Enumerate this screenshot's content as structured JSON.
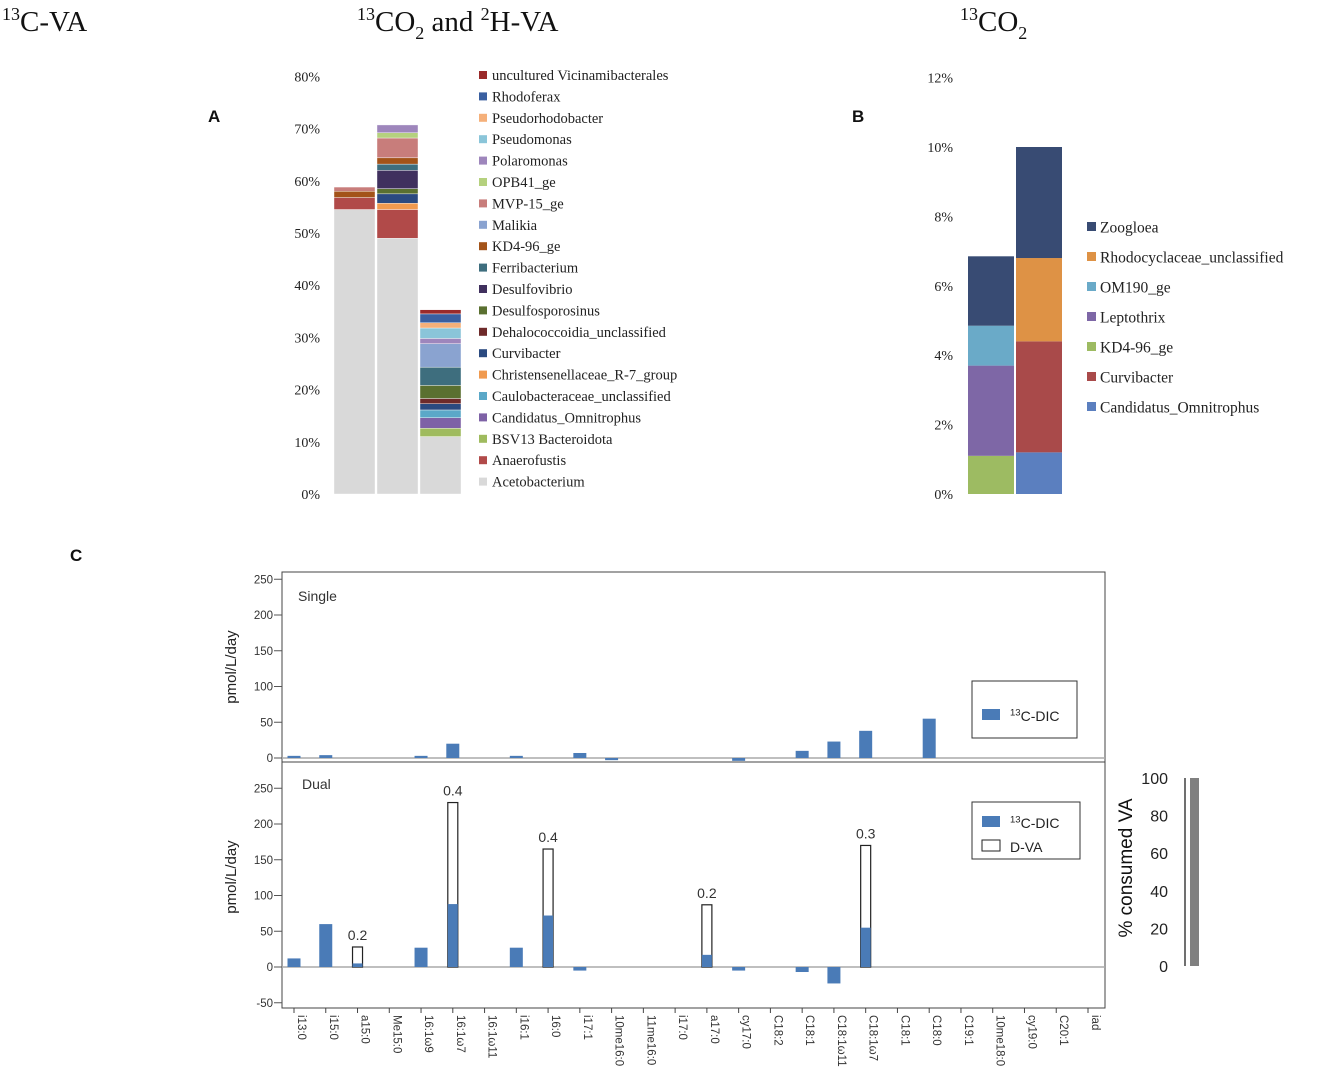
{
  "headers": {
    "left": "13C-VA",
    "middle": "13CO2 and 2H-VA",
    "right": "13CO2"
  },
  "chart_data": [
    {
      "id": "A",
      "panel_label": "A",
      "type": "bar",
      "stacked": true,
      "ylim": [
        0,
        80
      ],
      "yticks": [
        "0%",
        "10%",
        "20%",
        "30%",
        "40%",
        "50%",
        "60%",
        "70%",
        "80%"
      ],
      "categories": [
        "13C-VA",
        "13CO2 and 2H-VA",
        "13CO2"
      ],
      "legend_position": "right",
      "series": [
        {
          "name": "Acetobacterium",
          "color": "#d9d9d9",
          "values": [
            54.5,
            49,
            11
          ]
        },
        {
          "name": "Anaerofustis",
          "color": "#b14a49",
          "values": [
            2.3,
            5.5,
            0
          ]
        },
        {
          "name": "BSV13 Bacteroidota",
          "color": "#9fbb5e",
          "values": [
            0,
            0,
            1.6
          ]
        },
        {
          "name": "Candidatus_Omnitrophus",
          "color": "#7e62a6",
          "values": [
            0,
            0,
            2
          ]
        },
        {
          "name": "Caulobacteraceae_unclassified",
          "color": "#5ba8c8",
          "values": [
            0,
            0,
            1.5
          ]
        },
        {
          "name": "Christensenellaceae_R-7_group",
          "color": "#f09a4f",
          "values": [
            0,
            1.2,
            0
          ]
        },
        {
          "name": "Curvibacter",
          "color": "#2b4a80",
          "values": [
            0,
            1.8,
            1.2
          ]
        },
        {
          "name": "Dehalococcoidia_unclassified",
          "color": "#6e2a2a",
          "values": [
            0,
            0,
            1
          ]
        },
        {
          "name": "Desulfosporosinus",
          "color": "#5a7030",
          "values": [
            0,
            1,
            2.5
          ]
        },
        {
          "name": "Desulfovibrio",
          "color": "#40305e",
          "values": [
            0,
            3.5,
            0
          ]
        },
        {
          "name": "Ferribacterium",
          "color": "#3e6e7e",
          "values": [
            0,
            1.2,
            3.5
          ]
        },
        {
          "name": "KD4-96_ge",
          "color": "#a35319",
          "values": [
            1.2,
            1.2,
            0
          ]
        },
        {
          "name": "Malikia",
          "color": "#8aa3d0",
          "values": [
            0,
            0,
            4.5
          ]
        },
        {
          "name": "MVP-15_ge",
          "color": "#c87d7b",
          "values": [
            0.8,
            3.8,
            0
          ]
        },
        {
          "name": "OPB41_ge",
          "color": "#b5d17e",
          "values": [
            0,
            1,
            0
          ]
        },
        {
          "name": "Polaromonas",
          "color": "#9e86bc",
          "values": [
            0,
            1.5,
            1
          ]
        },
        {
          "name": "Pseudomonas",
          "color": "#8ac5d9",
          "values": [
            0,
            0,
            2
          ]
        },
        {
          "name": "Pseudorhodobacter",
          "color": "#f5b07a",
          "values": [
            0,
            0,
            1
          ]
        },
        {
          "name": "Rhodoferax",
          "color": "#3a5fa0",
          "values": [
            0,
            0,
            1.7
          ]
        },
        {
          "name": "uncultured Vicinamibacterales",
          "color": "#9a2a2a",
          "values": [
            0,
            0,
            0.8
          ]
        }
      ]
    },
    {
      "id": "B",
      "panel_label": "B",
      "type": "bar",
      "stacked": true,
      "ylim": [
        0,
        12
      ],
      "yticks": [
        "0%",
        "2%",
        "4%",
        "6%",
        "8%",
        "10%",
        "12%"
      ],
      "categories": [
        "13C-VA",
        "13CO2 and 2H-VA"
      ],
      "legend_position": "right",
      "series": [
        {
          "name": "Candidatus_Omnitrophus",
          "color": "#5b7fbf",
          "values": [
            0,
            1.2
          ]
        },
        {
          "name": "Curvibacter",
          "color": "#a94a4a",
          "values": [
            0,
            3.2
          ]
        },
        {
          "name": "KD4-96_ge",
          "color": "#9dbb62",
          "values": [
            1.1,
            0
          ]
        },
        {
          "name": "Leptothrix",
          "color": "#7e67a6",
          "values": [
            2.6,
            0
          ]
        },
        {
          "name": "OM190_ge",
          "color": "#6aaac8",
          "values": [
            1.15,
            0
          ]
        },
        {
          "name": "Rhodocyclaceae_unclassified",
          "color": "#de9245",
          "values": [
            0,
            2.4
          ]
        },
        {
          "name": "Zoogloea",
          "color": "#384b73",
          "values": [
            2,
            3.2
          ]
        }
      ]
    },
    {
      "id": "C-single",
      "panel_label": "C",
      "type": "bar",
      "title": "Single",
      "ylabel": "pmol/L/day",
      "ylim": [
        -12,
        262
      ],
      "yticks": [
        0,
        50,
        100,
        150,
        200,
        250
      ],
      "categories": [
        "i13:0",
        "i15:0",
        "a15:0",
        "Me15:0",
        "16:1ω9",
        "16:1ω7",
        "16:1ω11",
        "i16:1",
        "16:0",
        "i17:1",
        "10me16:0",
        "11me16:0",
        "i17:0",
        "a17:0",
        "cy17:0",
        "C18:2",
        "C18:1",
        "C18:1ω11",
        "C18:1ω7",
        "C18:1",
        "C18:0",
        "C19:1",
        "10me18:0",
        "cy19:0",
        "C20:1",
        "iad"
      ],
      "legend": [
        "13C-DIC"
      ],
      "series": [
        {
          "name": "13C-DIC",
          "color": "#4a7bb7",
          "values": [
            3,
            4,
            0,
            0,
            3,
            20,
            0,
            3,
            0,
            7,
            -3,
            0,
            0,
            0,
            -4,
            0,
            10,
            23,
            38,
            0,
            55,
            0,
            0,
            0,
            0,
            0
          ]
        }
      ]
    },
    {
      "id": "C-dual",
      "type": "bar",
      "title": "Dual",
      "ylabel": "pmol/L/day",
      "ylim": [
        -50,
        262
      ],
      "yticks": [
        -50,
        0,
        50,
        100,
        150,
        200,
        250
      ],
      "categories": [
        "i13:0",
        "i15:0",
        "a15:0",
        "Me15:0",
        "16:1ω9",
        "16:1ω7",
        "16:1ω11",
        "i16:1",
        "16:0",
        "i17:1",
        "10me16:0",
        "11me16:0",
        "i17:0",
        "a17:0",
        "cy17:0",
        "C18:2",
        "C18:1",
        "C18:1ω11",
        "C18:1ω7",
        "C18:1",
        "C18:0",
        "C19:1",
        "10me18:0",
        "cy19:0",
        "C20:1",
        "iad"
      ],
      "legend": [
        "13C-DIC",
        "D-VA"
      ],
      "series": [
        {
          "name": "13C-DIC",
          "color": "#4a7bb7",
          "values": [
            12,
            60,
            5,
            0,
            27,
            88,
            0,
            27,
            72,
            -5,
            0,
            0,
            0,
            17,
            -5,
            0,
            -7,
            -23,
            55,
            0,
            0,
            0,
            0,
            0,
            0,
            0
          ]
        },
        {
          "name": "D-VA",
          "color": "#ffffff",
          "values": [
            0,
            0,
            28,
            0,
            0,
            230,
            0,
            0,
            165,
            0,
            0,
            0,
            0,
            87,
            0,
            0,
            0,
            0,
            170,
            0,
            0,
            0,
            0,
            0,
            0,
            0
          ]
        }
      ],
      "annotations": [
        {
          "category": "a15:0",
          "text": "0.2"
        },
        {
          "category": "16:1ω7",
          "text": "0.4"
        },
        {
          "category": "16:0",
          "text": "0.4"
        },
        {
          "category": "a17:0",
          "text": "0.2"
        },
        {
          "category": "C18:1ω7",
          "text": "0.3"
        }
      ]
    },
    {
      "id": "C-scale",
      "type": "bar",
      "ylabel": "% consumed VA",
      "ylim": [
        0,
        100
      ],
      "yticks": [
        0,
        20,
        40,
        60,
        80,
        100
      ],
      "values": [
        100
      ],
      "color": "#808080"
    }
  ]
}
